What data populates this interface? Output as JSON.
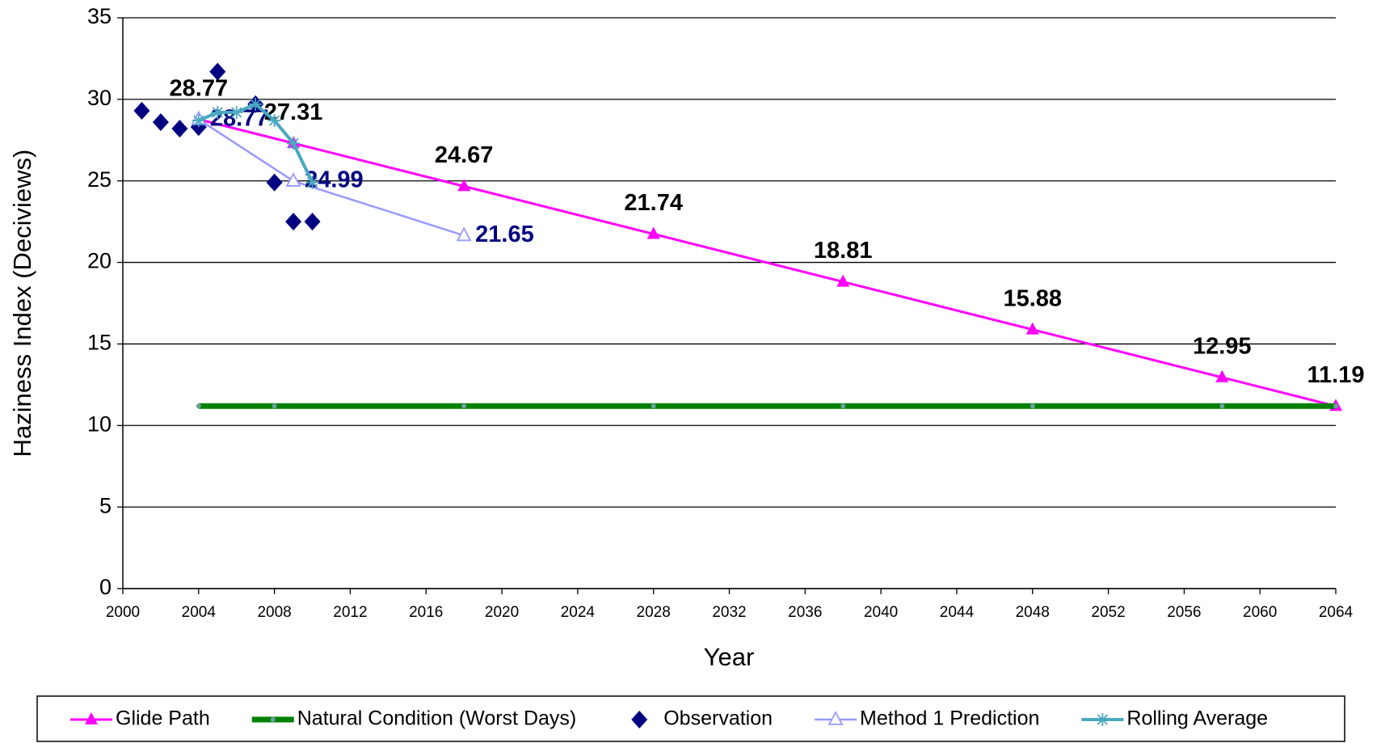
{
  "chart_data": {
    "type": "line",
    "x_label": "Year",
    "y_label": "Haziness Index (Deciviews)",
    "xlim": [
      2000,
      2064
    ],
    "xticks": [
      2000,
      2004,
      2008,
      2012,
      2016,
      2020,
      2024,
      2028,
      2032,
      2036,
      2040,
      2044,
      2048,
      2052,
      2056,
      2060,
      2064
    ],
    "ylim": [
      0,
      35
    ],
    "yticks": [
      0,
      5,
      10,
      15,
      20,
      25,
      30,
      35
    ],
    "grid": true,
    "legend": "bottom",
    "series": [
      {
        "name": "Glide Path",
        "color": "#ff00ff",
        "marker": "triangle",
        "line": true,
        "line_width": 3,
        "label_color": "#000000",
        "label_position": "above",
        "x": [
          2004,
          2009,
          2018,
          2028,
          2038,
          2048,
          2058,
          2064
        ],
        "values": [
          28.77,
          27.31,
          24.67,
          21.74,
          18.81,
          15.88,
          12.95,
          11.19
        ]
      },
      {
        "name": "Natural Condition (Worst Days)",
        "color": "#008000",
        "marker": "dot",
        "line": true,
        "line_width": 7,
        "x": [
          2004,
          2008,
          2018,
          2028,
          2038,
          2048,
          2058,
          2064
        ],
        "values": [
          11.19,
          11.19,
          11.19,
          11.19,
          11.19,
          11.19,
          11.19,
          11.19
        ]
      },
      {
        "name": "Observation",
        "color": "#000080",
        "marker": "diamond",
        "line": false,
        "x": [
          2001,
          2002,
          2003,
          2004,
          2005,
          2007,
          2008,
          2009,
          2010
        ],
        "values": [
          29.3,
          28.6,
          28.2,
          28.3,
          31.7,
          29.7,
          24.9,
          22.5,
          22.5
        ]
      },
      {
        "name": "Method 1 Prediction",
        "color": "#9999ff",
        "marker": "open-triangle",
        "line": true,
        "line_width": 2.5,
        "label_color": "#000080",
        "label_position": "right",
        "x": [
          2004,
          2009,
          2018
        ],
        "values": [
          28.77,
          24.99,
          21.65
        ]
      },
      {
        "name": "Rolling Average",
        "color": "#4aa8c0",
        "marker": "star",
        "line": true,
        "line_width": 4,
        "x": [
          2004,
          2005,
          2006,
          2007,
          2008,
          2009,
          2010
        ],
        "values": [
          28.7,
          29.2,
          29.2,
          29.7,
          28.7,
          27.3,
          24.9
        ]
      }
    ]
  }
}
